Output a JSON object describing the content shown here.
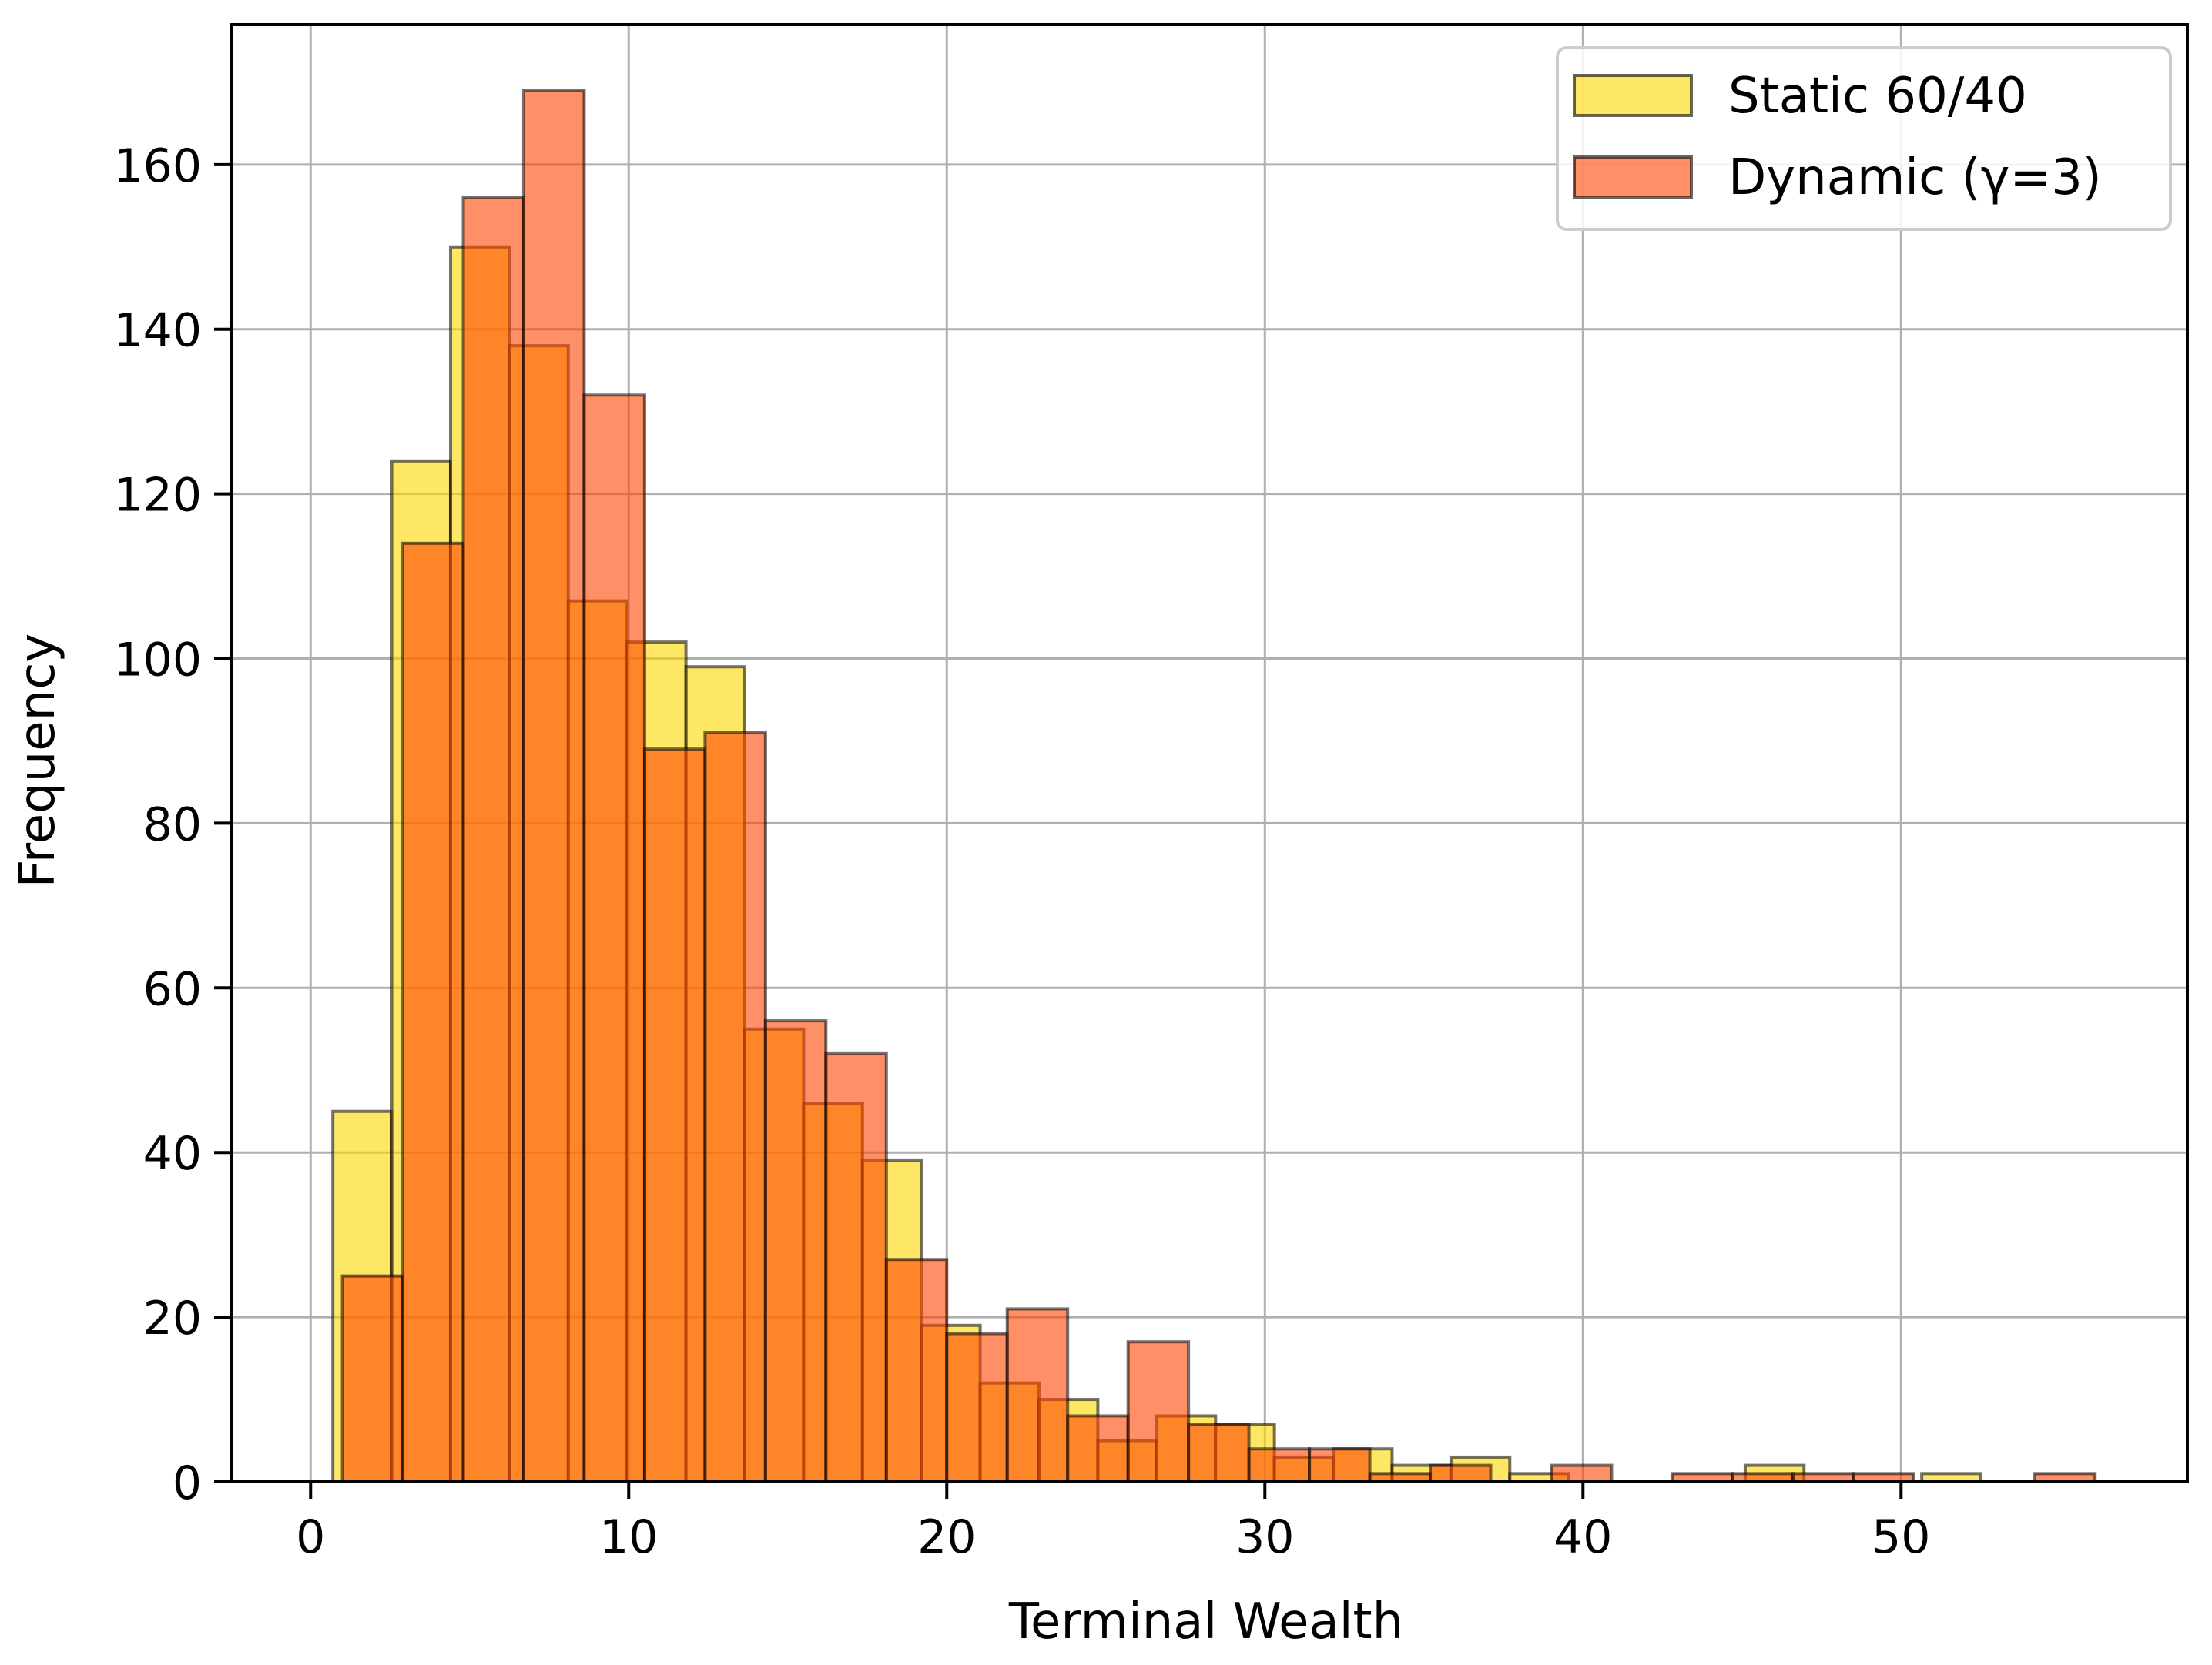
{
  "chart_data": {
    "type": "bar",
    "xlabel": "Terminal Wealth",
    "ylabel": "Frequency",
    "xlim": [
      -2.5,
      59
    ],
    "ylim": [
      0,
      177
    ],
    "xticks": [
      0,
      10,
      20,
      30,
      40,
      50
    ],
    "yticks": [
      0,
      20,
      40,
      60,
      80,
      100,
      120,
      140,
      160
    ],
    "grid": true,
    "legend_position": "top-right",
    "series": [
      {
        "name": "Static 60/40",
        "color": "#ffd700",
        "alpha": 0.6,
        "edgecolor": "#000000",
        "bins": [
          {
            "x0": 0.7,
            "x1": 2.55,
            "count": 45
          },
          {
            "x0": 2.55,
            "x1": 4.4,
            "count": 124
          },
          {
            "x0": 4.4,
            "x1": 6.25,
            "count": 150
          },
          {
            "x0": 6.25,
            "x1": 8.1,
            "count": 138
          },
          {
            "x0": 8.1,
            "x1": 9.95,
            "count": 107
          },
          {
            "x0": 9.95,
            "x1": 11.8,
            "count": 102
          },
          {
            "x0": 11.8,
            "x1": 13.65,
            "count": 99
          },
          {
            "x0": 13.65,
            "x1": 15.5,
            "count": 55
          },
          {
            "x0": 15.5,
            "x1": 17.35,
            "count": 46
          },
          {
            "x0": 17.35,
            "x1": 19.2,
            "count": 39
          },
          {
            "x0": 19.2,
            "x1": 21.05,
            "count": 19
          },
          {
            "x0": 21.05,
            "x1": 22.9,
            "count": 12
          },
          {
            "x0": 22.9,
            "x1": 24.75,
            "count": 10
          },
          {
            "x0": 24.75,
            "x1": 26.6,
            "count": 5
          },
          {
            "x0": 26.6,
            "x1": 28.45,
            "count": 8
          },
          {
            "x0": 28.45,
            "x1": 30.3,
            "count": 7
          },
          {
            "x0": 30.3,
            "x1": 32.15,
            "count": 3
          },
          {
            "x0": 32.15,
            "x1": 34.0,
            "count": 4
          },
          {
            "x0": 34.0,
            "x1": 35.85,
            "count": 2
          },
          {
            "x0": 35.85,
            "x1": 37.7,
            "count": 3
          },
          {
            "x0": 37.7,
            "x1": 39.55,
            "count": 1
          },
          {
            "x0": 39.55,
            "x1": 41.4,
            "count": 0
          },
          {
            "x0": 41.4,
            "x1": 43.25,
            "count": 0
          },
          {
            "x0": 43.25,
            "x1": 45.1,
            "count": 0
          },
          {
            "x0": 45.1,
            "x1": 46.95,
            "count": 2
          },
          {
            "x0": 46.95,
            "x1": 48.8,
            "count": 0
          },
          {
            "x0": 48.8,
            "x1": 50.65,
            "count": 0
          },
          {
            "x0": 50.65,
            "x1": 52.5,
            "count": 1
          }
        ]
      },
      {
        "name": "Dynamic (γ=3)",
        "color": "#ff4500",
        "alpha": 0.6,
        "edgecolor": "#000000",
        "bins": [
          {
            "x0": 1.0,
            "x1": 2.9,
            "count": 25
          },
          {
            "x0": 2.9,
            "x1": 4.8,
            "count": 114
          },
          {
            "x0": 4.8,
            "x1": 6.7,
            "count": 156
          },
          {
            "x0": 6.7,
            "x1": 8.6,
            "count": 169
          },
          {
            "x0": 8.6,
            "x1": 10.5,
            "count": 132
          },
          {
            "x0": 10.5,
            "x1": 12.4,
            "count": 89
          },
          {
            "x0": 12.4,
            "x1": 14.3,
            "count": 91
          },
          {
            "x0": 14.3,
            "x1": 16.2,
            "count": 56
          },
          {
            "x0": 16.2,
            "x1": 18.1,
            "count": 52
          },
          {
            "x0": 18.1,
            "x1": 20.0,
            "count": 27
          },
          {
            "x0": 20.0,
            "x1": 21.9,
            "count": 18
          },
          {
            "x0": 21.9,
            "x1": 23.8,
            "count": 21
          },
          {
            "x0": 23.8,
            "x1": 25.7,
            "count": 8
          },
          {
            "x0": 25.7,
            "x1": 27.6,
            "count": 17
          },
          {
            "x0": 27.6,
            "x1": 29.5,
            "count": 7
          },
          {
            "x0": 29.5,
            "x1": 31.4,
            "count": 4
          },
          {
            "x0": 31.4,
            "x1": 33.3,
            "count": 4
          },
          {
            "x0": 33.3,
            "x1": 35.2,
            "count": 1
          },
          {
            "x0": 35.2,
            "x1": 37.1,
            "count": 2
          },
          {
            "x0": 37.1,
            "x1": 39.0,
            "count": 0
          },
          {
            "x0": 39.0,
            "x1": 40.9,
            "count": 2
          },
          {
            "x0": 40.9,
            "x1": 42.8,
            "count": 0
          },
          {
            "x0": 42.8,
            "x1": 44.7,
            "count": 1
          },
          {
            "x0": 44.7,
            "x1": 46.6,
            "count": 1
          },
          {
            "x0": 46.6,
            "x1": 48.5,
            "count": 1
          },
          {
            "x0": 48.5,
            "x1": 50.4,
            "count": 1
          },
          {
            "x0": 50.4,
            "x1": 52.3,
            "count": 0
          },
          {
            "x0": 52.3,
            "x1": 54.2,
            "count": 0
          },
          {
            "x0": 54.2,
            "x1": 56.1,
            "count": 1
          }
        ]
      }
    ]
  }
}
